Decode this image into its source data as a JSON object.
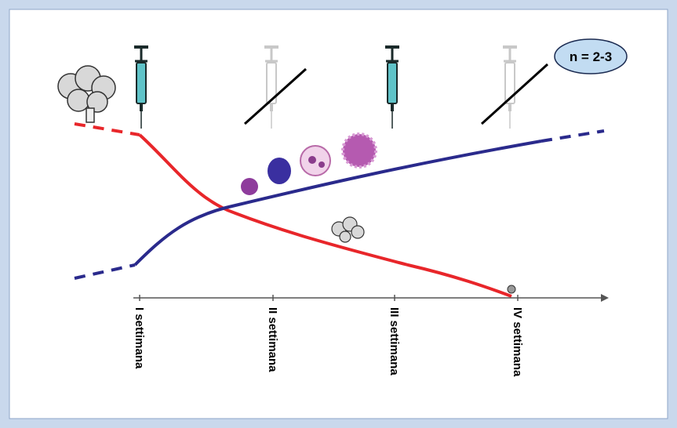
{
  "badge": {
    "label": "n = 2-3"
  },
  "timeline": {
    "weeks": [
      "I settimana",
      "II settimana",
      "III settimana",
      "IV settimana"
    ]
  }
}
